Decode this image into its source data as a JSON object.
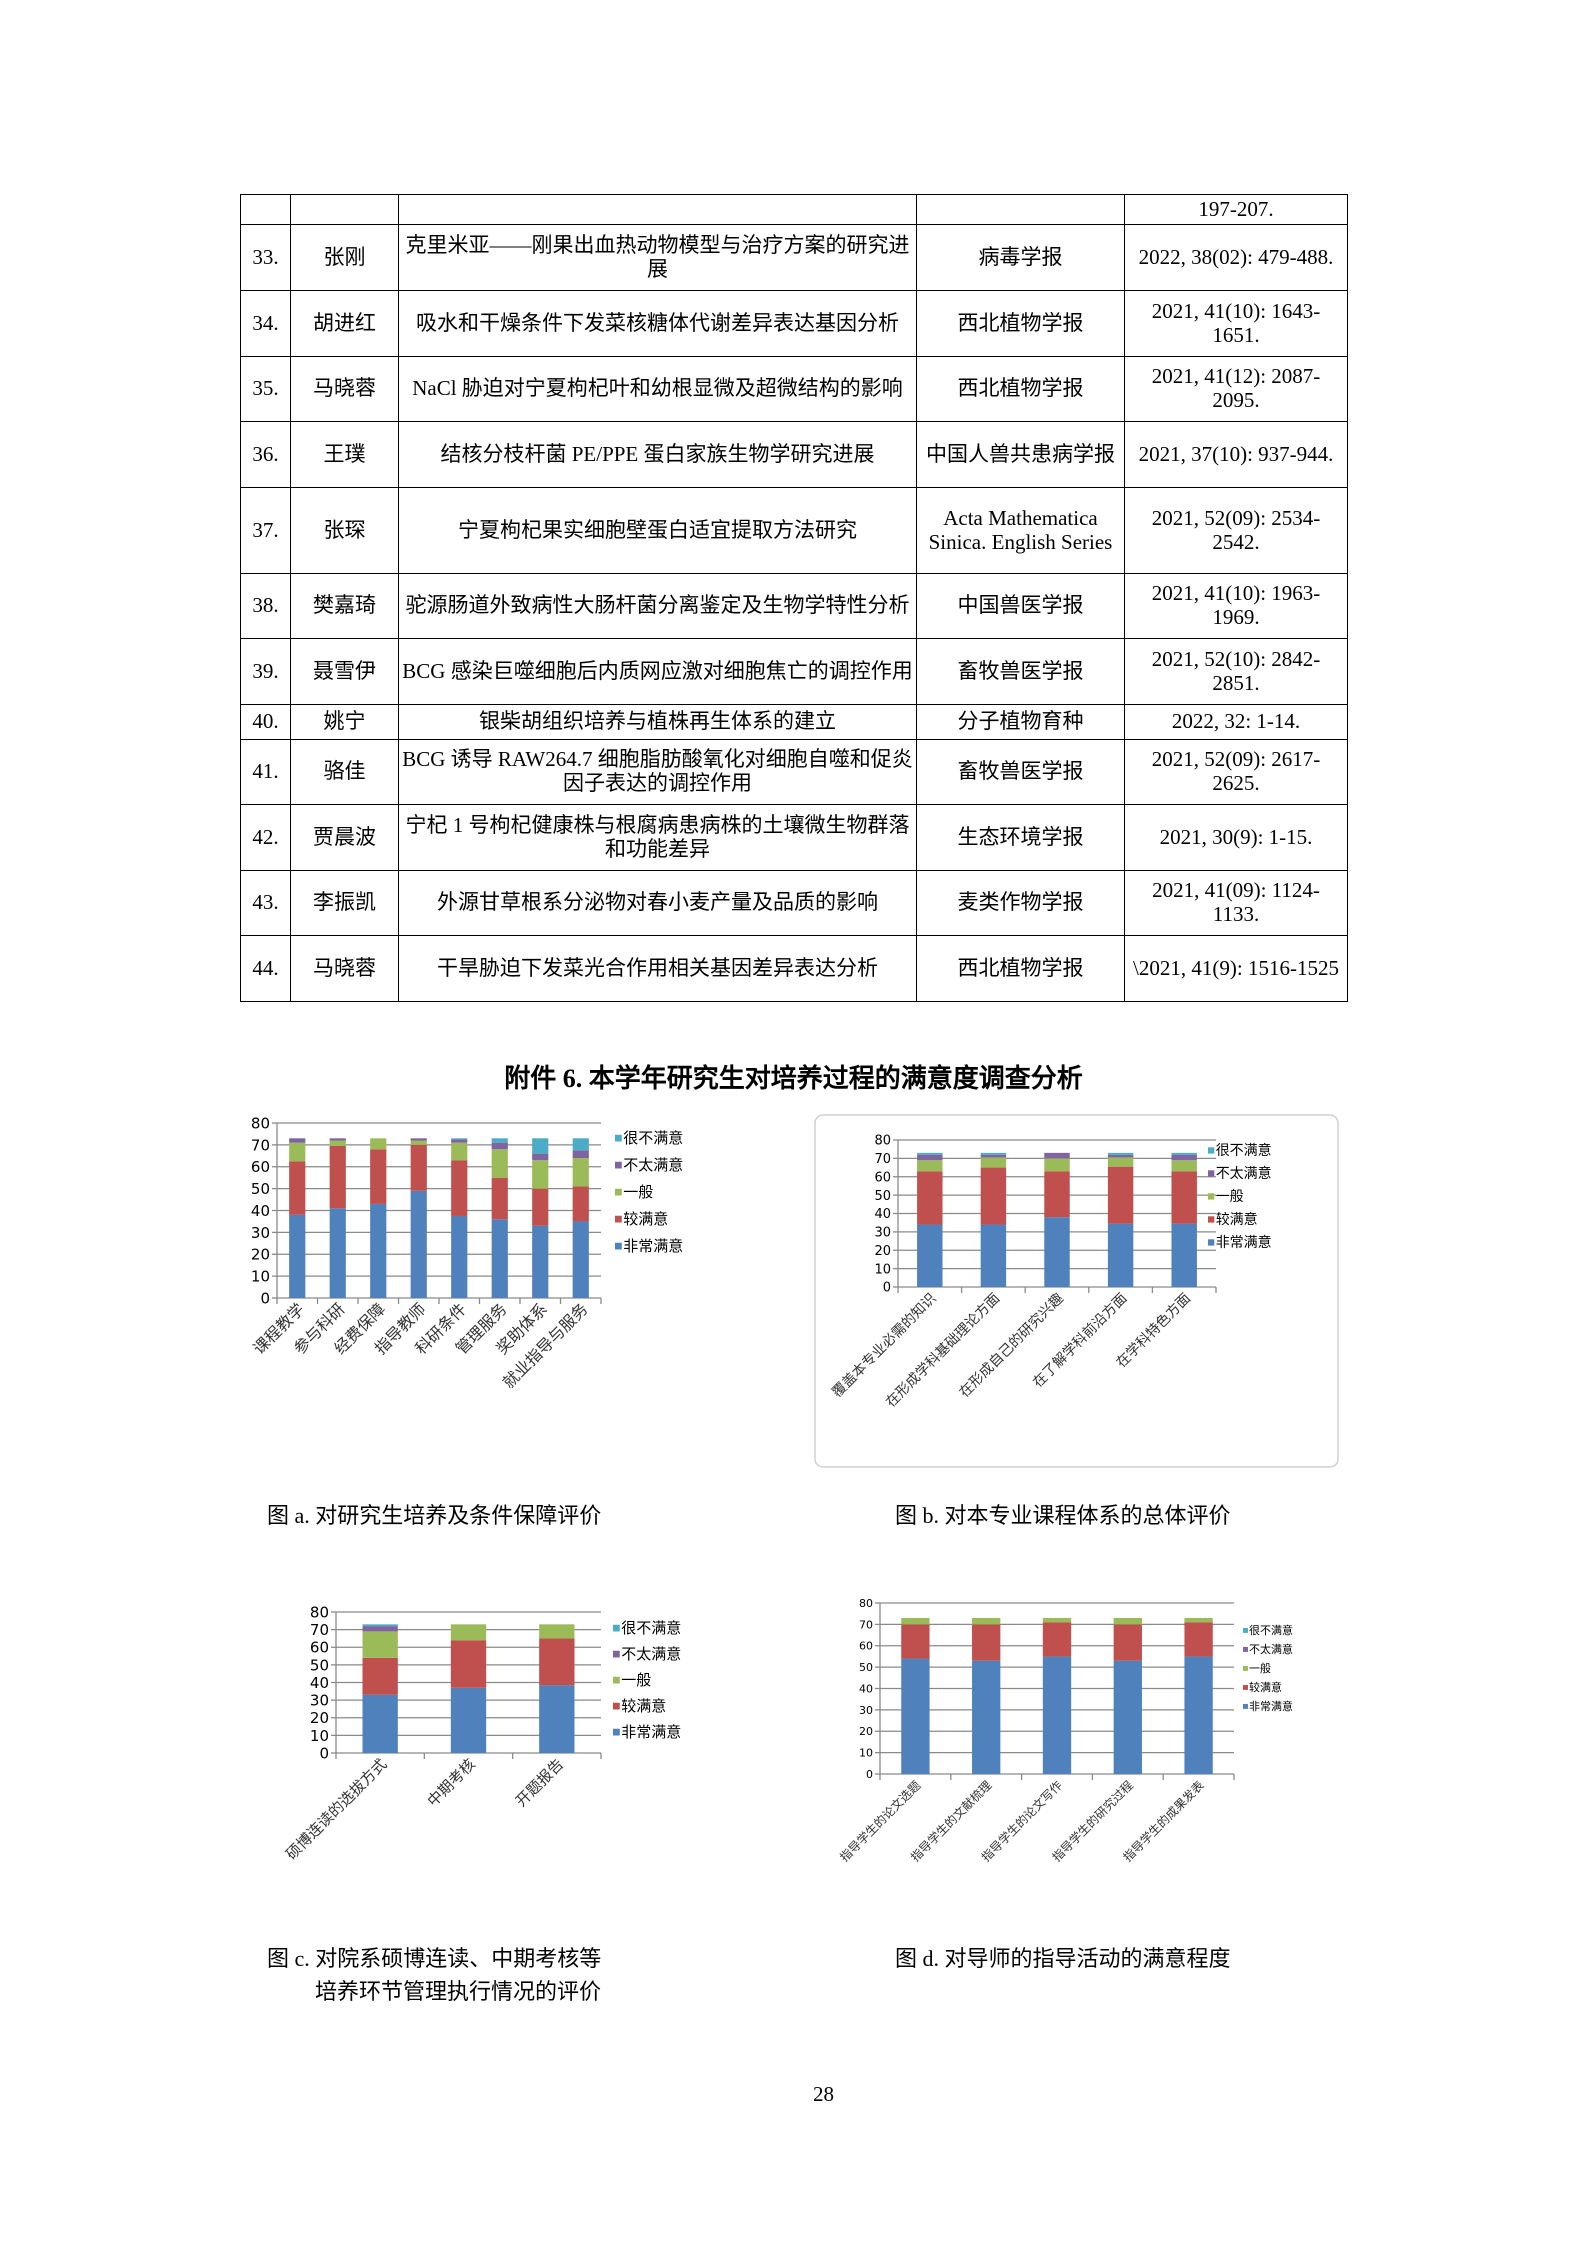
{
  "table": {
    "rows": [
      [
        "",
        "",
        "",
        "",
        "197-207."
      ],
      [
        "33.",
        "张刚",
        "克里米亚——刚果出血热动物模型与治疗方案的研究进展",
        "病毒学报",
        "2022, 38(02): 479-488."
      ],
      [
        "34.",
        "胡进红",
        "吸水和干燥条件下发菜核糖体代谢差异表达基因分析",
        "西北植物学报",
        "2021, 41(10): 1643-1651."
      ],
      [
        "35.",
        "马晓蓉",
        "NaCl 胁迫对宁夏枸杞叶和幼根显微及超微结构的影响",
        "西北植物学报",
        "2021, 41(12): 2087-2095."
      ],
      [
        "36.",
        "王璞",
        "结核分枝杆菌 PE/PPE 蛋白家族生物学研究进展",
        "中国人兽共患病学报",
        "2021, 37(10): 937-944."
      ],
      [
        "37.",
        "张琛",
        "宁夏枸杞果实细胞壁蛋白适宜提取方法研究",
        "Acta Mathematica Sinica. English Series",
        "2021, 52(09): 2534-2542."
      ],
      [
        "38.",
        "樊嘉琦",
        "驼源肠道外致病性大肠杆菌分离鉴定及生物学特性分析",
        "中国兽医学报",
        "2021, 41(10): 1963-1969."
      ],
      [
        "39.",
        "聂雪伊",
        "BCG 感染巨噬细胞后内质网应激对细胞焦亡的调控作用",
        "畜牧兽医学报",
        "2021, 52(10): 2842-2851."
      ],
      [
        "40.",
        "姚宁",
        "银柴胡组织培养与植株再生体系的建立",
        "分子植物育种",
        "2022, 32: 1-14."
      ],
      [
        "41.",
        "骆佳",
        "BCG 诱导 RAW264.7 细胞脂肪酸氧化对细胞自噬和促炎因子表达的调控作用",
        "畜牧兽医学报",
        "2021, 52(09): 2617-2625."
      ],
      [
        "42.",
        "贾晨波",
        "宁杞 1 号枸杞健康株与根腐病患病株的土壤微生物群落和功能差异",
        "生态环境学报",
        "2021, 30(9): 1-15."
      ],
      [
        "43.",
        "李振凯",
        "外源甘草根系分泌物对春小麦产量及品质的影响",
        "麦类作物学报",
        "2021, 41(09): 1124-1133."
      ],
      [
        "44.",
        "马晓蓉",
        "干旱胁迫下发菜光合作用相关基因差异表达分析",
        "西北植物学报",
        "\\2021, 41(9): 1516-1525"
      ]
    ]
  },
  "section_title": "附件 6. 本学年研究生对培养过程的满意度调查分析",
  "captions": {
    "a": "图 a. 对研究生培养及条件保障评价",
    "b": "图 b. 对本专业课程体系的总体评价",
    "c_line1": "图 c. 对院系硕博连读、中期考核等",
    "c_line2": "培养环节管理执行情况的评价",
    "d": "图 d. 对导师的指导活动的满意程度"
  },
  "page_number": "28",
  "colors": {
    "非常满意": "#4f81bd",
    "较满意": "#c0504d",
    "一般": "#9bbb59",
    "不太满意": "#8064a2",
    "很不满意": "#4bacc6"
  },
  "chart_data": [
    {
      "id": "a",
      "type": "bar",
      "stacked": true,
      "ylim": [
        0,
        80
      ],
      "yticks": [
        0,
        10,
        20,
        30,
        40,
        50,
        60,
        70,
        80
      ],
      "grid": true,
      "legend": "right",
      "categories": [
        "课程教学",
        "参与科研",
        "经费保障",
        "指导教师",
        "科研条件",
        "管理服务",
        "奖助体系",
        "就业指导与服务"
      ],
      "series": [
        {
          "name": "非常满意",
          "values": [
            38,
            41,
            43,
            49,
            37.5,
            36,
            33,
            35
          ]
        },
        {
          "name": "较满意",
          "values": [
            24.5,
            28.5,
            25,
            21,
            25.5,
            19,
            17,
            16
          ]
        },
        {
          "name": "一般",
          "values": [
            8.5,
            2.5,
            5,
            2,
            8,
            13,
            13,
            13
          ]
        },
        {
          "name": "不太满意",
          "values": [
            2,
            1,
            0,
            1,
            1.5,
            3,
            3,
            3.5
          ]
        },
        {
          "name": "很不满意",
          "values": [
            0,
            0,
            0,
            0,
            0.5,
            2,
            7,
            5.5
          ]
        }
      ]
    },
    {
      "id": "b",
      "type": "bar",
      "stacked": true,
      "ylim": [
        0,
        80
      ],
      "yticks": [
        0,
        10,
        20,
        30,
        40,
        50,
        60,
        70,
        80
      ],
      "grid": true,
      "legend": "right",
      "categories": [
        "覆盖本专业必需的知识",
        "在形成学科基础理论方面",
        "在形成自己的研究兴趣",
        "在了解学科前沿方面",
        "在学科特色方面"
      ],
      "series": [
        {
          "name": "非常满意",
          "values": [
            34,
            34,
            38,
            34.5,
            34.5
          ]
        },
        {
          "name": "较满意",
          "values": [
            29,
            31,
            25,
            31,
            28.5
          ]
        },
        {
          "name": "一般",
          "values": [
            6,
            5.5,
            7,
            5,
            6
          ]
        },
        {
          "name": "不太满意",
          "values": [
            3,
            1.5,
            3,
            1.5,
            3
          ]
        },
        {
          "name": "很不满意",
          "values": [
            1,
            1,
            0,
            1,
            1
          ]
        }
      ]
    },
    {
      "id": "c",
      "type": "bar",
      "stacked": true,
      "ylim": [
        0,
        80
      ],
      "yticks": [
        0,
        10,
        20,
        30,
        40,
        50,
        60,
        70,
        80
      ],
      "grid": true,
      "legend": "right",
      "categories": [
        "硕博连读的选拔方式",
        "中期考核",
        "开题报告"
      ],
      "series": [
        {
          "name": "非常满意",
          "values": [
            33,
            37,
            38.5
          ]
        },
        {
          "name": "较满意",
          "values": [
            21,
            27,
            26.5
          ]
        },
        {
          "name": "一般",
          "values": [
            15,
            9,
            8
          ]
        },
        {
          "name": "不太满意",
          "values": [
            3,
            0,
            0
          ]
        },
        {
          "name": "很不满意",
          "values": [
            1,
            0,
            0
          ]
        }
      ]
    },
    {
      "id": "d",
      "type": "bar",
      "stacked": true,
      "ylim": [
        0,
        80
      ],
      "yticks": [
        0,
        10,
        20,
        30,
        40,
        50,
        60,
        70,
        80
      ],
      "grid": true,
      "legend": "right",
      "categories": [
        "指导学生的论文选题",
        "指导学生的文献梳理",
        "指导学生的论文写作",
        "指导学生的研究过程",
        "指导学生的成果发表"
      ],
      "series": [
        {
          "name": "非常满意",
          "values": [
            54,
            53,
            55,
            53,
            55
          ]
        },
        {
          "name": "较满意",
          "values": [
            16,
            17,
            16,
            17,
            16
          ]
        },
        {
          "name": "一般",
          "values": [
            3,
            3,
            2,
            3,
            2
          ]
        },
        {
          "name": "不太满意",
          "values": [
            0,
            0,
            0,
            0,
            0
          ]
        },
        {
          "name": "很不满意",
          "values": [
            0,
            0,
            0,
            0,
            0
          ]
        }
      ]
    }
  ]
}
